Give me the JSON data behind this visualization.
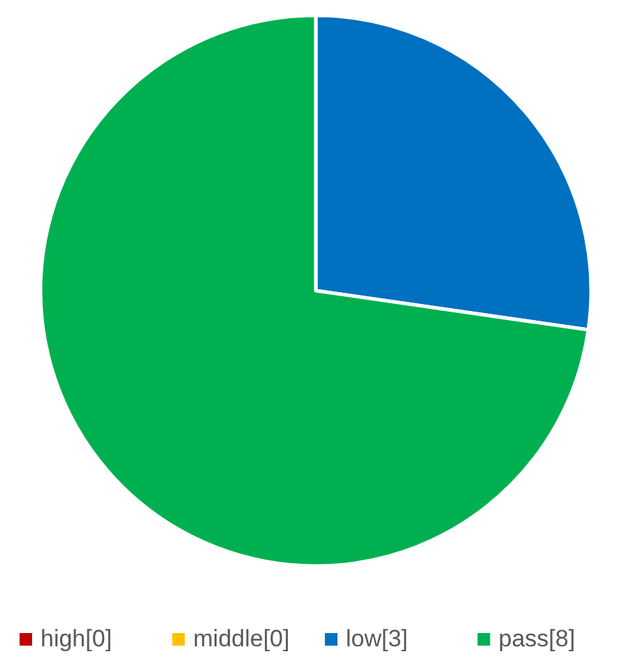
{
  "chart_data": {
    "type": "pie",
    "categories": [
      "high[0]",
      "middle[0]",
      "low[3]",
      "pass[8]"
    ],
    "values": [
      0,
      0,
      3,
      8
    ],
    "colors": [
      "#c00000",
      "#ffc000",
      "#0070c0",
      "#00b050"
    ],
    "legend": "bottom"
  }
}
